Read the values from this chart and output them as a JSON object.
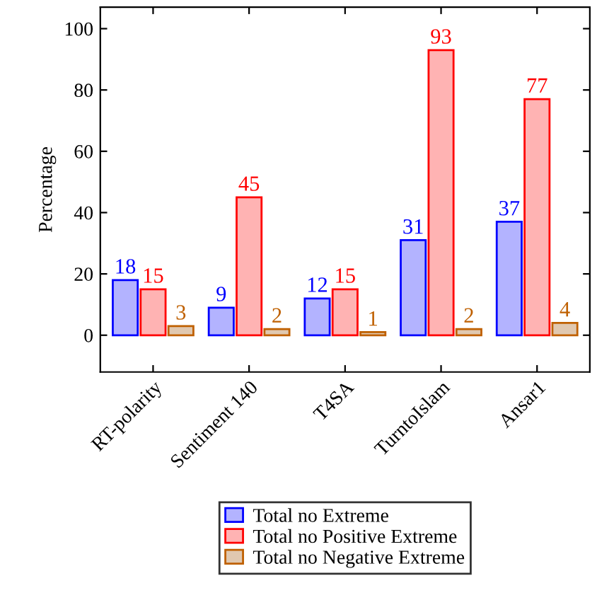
{
  "chart_data": {
    "type": "bar",
    "ylabel": "Percentage",
    "categories": [
      "RT-polarity",
      "Sentiment 140",
      "T4SA",
      "TurntoIslam",
      "Ansar1"
    ],
    "series": [
      {
        "name": "Total no Extreme",
        "color": "#b3b3ff",
        "values": [
          18,
          9,
          12,
          31,
          37
        ]
      },
      {
        "name": "Total no Positive Extreme",
        "color": "#ffb3b3",
        "values": [
          15,
          45,
          15,
          93,
          77
        ]
      },
      {
        "name": "Total no Negative Extreme",
        "color": "#e0c8b0",
        "values": [
          3,
          2,
          1,
          2,
          4
        ]
      }
    ],
    "ylim": [
      -12,
      107
    ],
    "yticks": [
      0,
      20,
      40,
      60,
      80,
      100
    ],
    "data_labels": true,
    "legend": "bottom",
    "grid": false
  }
}
